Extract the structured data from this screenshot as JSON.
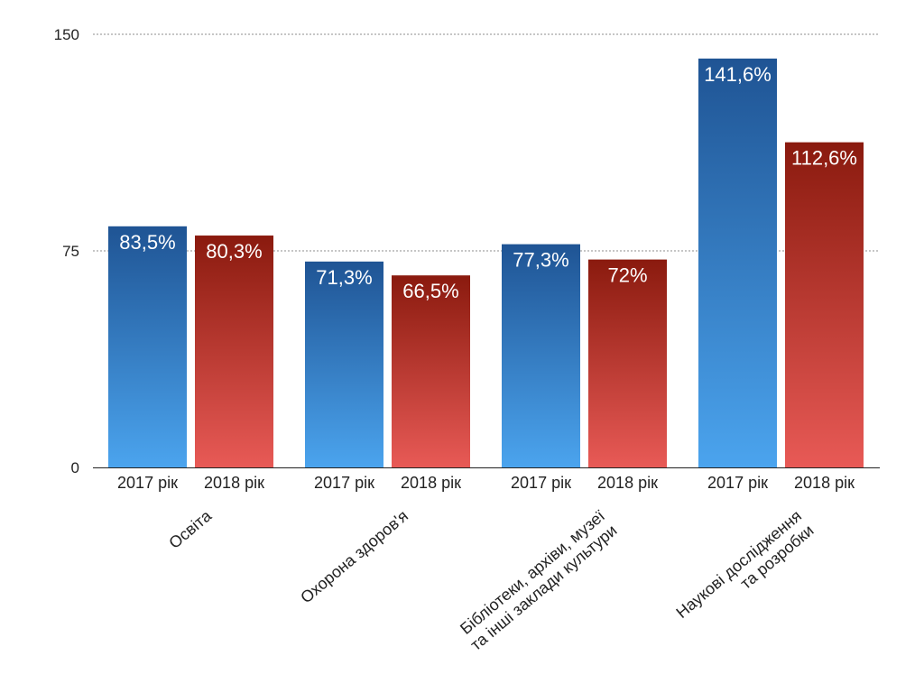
{
  "chart_data": {
    "type": "bar",
    "categories": [
      [
        "Освіта"
      ],
      [
        "Охорона здоров'я"
      ],
      [
        "Бібліотеки, архіви, музеї",
        "та інші заклади культури"
      ],
      [
        "Наукові дослідження",
        "та розробки"
      ]
    ],
    "series": [
      {
        "tick_label": "2017 рік",
        "values": [
          83.5,
          71.3,
          77.3,
          141.6
        ],
        "value_labels": [
          "83,5%",
          "71,3%",
          "77,3%",
          "141,6%"
        ],
        "color_top": "#1f5494",
        "color_bottom": "#4ba4ee"
      },
      {
        "tick_label": "2018 рік",
        "values": [
          80.3,
          66.5,
          72,
          112.6
        ],
        "value_labels": [
          "80,3%",
          "66,5%",
          "72%",
          "112,6%"
        ],
        "color_top": "#8a1a0e",
        "color_bottom": "#e85a56"
      }
    ],
    "ylim": [
      0,
      150
    ],
    "yticks": [
      0,
      75,
      150
    ],
    "grid_lines": [
      75,
      150
    ],
    "grid": "dotted horizontal",
    "legend": "none"
  }
}
